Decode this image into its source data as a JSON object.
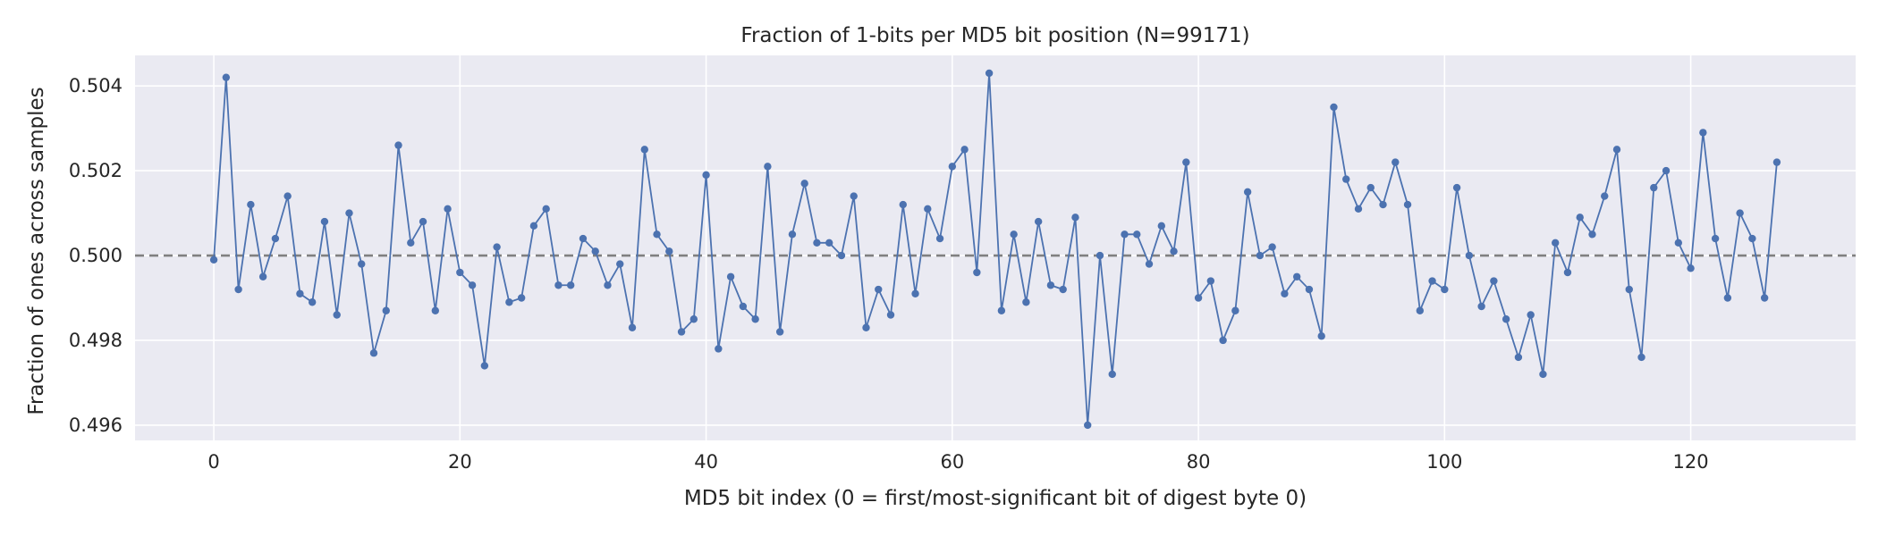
{
  "chart_data": {
    "type": "line",
    "title": "Fraction of 1-bits per MD5 bit position (N=99171)",
    "xlabel": "MD5 bit index (0 = first/most-significant bit of digest byte 0)",
    "ylabel": "Fraction of ones across samples",
    "xlim": [
      -6.4,
      133.4
    ],
    "ylim": [
      0.49564,
      0.50472
    ],
    "xticks": [
      0,
      20,
      40,
      60,
      80,
      100,
      120
    ],
    "yticks": [
      0.496,
      0.498,
      0.5,
      0.502,
      0.504
    ],
    "xtick_labels": [
      "0",
      "20",
      "40",
      "60",
      "80",
      "100",
      "120"
    ],
    "ytick_labels": [
      "0.496",
      "0.498",
      "0.500",
      "0.502",
      "0.504"
    ],
    "reference_line": {
      "y": 0.5,
      "style": "dashed",
      "color": "#808080"
    },
    "grid": true,
    "series_color": "#4c72b0",
    "x": [
      0,
      1,
      2,
      3,
      4,
      5,
      6,
      7,
      8,
      9,
      10,
      11,
      12,
      13,
      14,
      15,
      16,
      17,
      18,
      19,
      20,
      21,
      22,
      23,
      24,
      25,
      26,
      27,
      28,
      29,
      30,
      31,
      32,
      33,
      34,
      35,
      36,
      37,
      38,
      39,
      40,
      41,
      42,
      43,
      44,
      45,
      46,
      47,
      48,
      49,
      50,
      51,
      52,
      53,
      54,
      55,
      56,
      57,
      58,
      59,
      60,
      61,
      62,
      63,
      64,
      65,
      66,
      67,
      68,
      69,
      70,
      71,
      72,
      73,
      74,
      75,
      76,
      77,
      78,
      79,
      80,
      81,
      82,
      83,
      84,
      85,
      86,
      87,
      88,
      89,
      90,
      91,
      92,
      93,
      94,
      95,
      96,
      97,
      98,
      99,
      100,
      101,
      102,
      103,
      104,
      105,
      106,
      107,
      108,
      109,
      110,
      111,
      112,
      113,
      114,
      115,
      116,
      117,
      118,
      119,
      120,
      121,
      122,
      123,
      124,
      125,
      126,
      127
    ],
    "y": [
      0.4999,
      0.5042,
      0.4992,
      0.5012,
      0.4995,
      0.5004,
      0.5014,
      0.4991,
      0.4989,
      0.5008,
      0.4986,
      0.501,
      0.4998,
      0.4977,
      0.4987,
      0.5026,
      0.5003,
      0.5008,
      0.4987,
      0.5011,
      0.4996,
      0.4993,
      0.4974,
      0.5002,
      0.4989,
      0.499,
      0.5007,
      0.5011,
      0.4993,
      0.4993,
      0.5004,
      0.5001,
      0.4993,
      0.4998,
      0.4983,
      0.5025,
      0.5005,
      0.5001,
      0.4982,
      0.4985,
      0.5019,
      0.4978,
      0.4995,
      0.4988,
      0.4985,
      0.5021,
      0.4982,
      0.5005,
      0.5017,
      0.5003,
      0.5003,
      0.5,
      0.5014,
      0.4983,
      0.4992,
      0.4986,
      0.5012,
      0.4991,
      0.5011,
      0.5004,
      0.5021,
      0.5025,
      0.4996,
      0.5043,
      0.4987,
      0.5005,
      0.4989,
      0.5008,
      0.4993,
      0.4992,
      0.5009,
      0.496,
      0.5,
      0.4972,
      0.5005,
      0.5005,
      0.4998,
      0.5007,
      0.5001,
      0.5022,
      0.499,
      0.4994,
      0.498,
      0.4987,
      0.5015,
      0.5,
      0.5002,
      0.4991,
      0.4995,
      0.4992,
      0.4981,
      0.5035,
      0.5018,
      0.5011,
      0.5016,
      0.5012,
      0.5022,
      0.5012,
      0.4987,
      0.4994,
      0.4992,
      0.5016,
      0.5,
      0.4988,
      0.4994,
      0.4985,
      0.4976,
      0.4986,
      0.4972,
      0.5003,
      0.4996,
      0.5009,
      0.5005,
      0.5014,
      0.5025,
      0.4992,
      0.4976,
      0.5016,
      0.502,
      0.5003,
      0.4997,
      0.5029,
      0.5004,
      0.499,
      0.501,
      0.5004,
      0.499,
      0.5022
    ]
  }
}
